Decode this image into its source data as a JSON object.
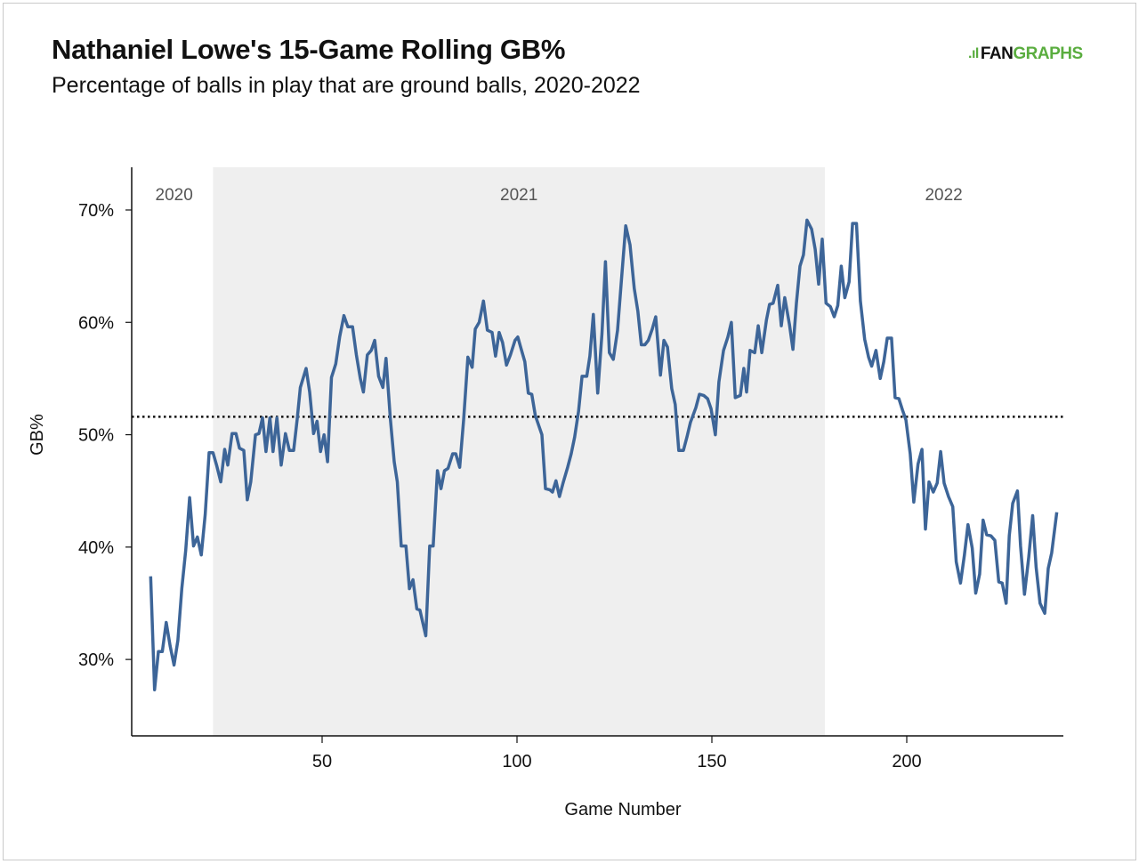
{
  "header": {
    "title": "Nathaniel Lowe's 15-Game Rolling GB%",
    "subtitle": "Percentage of balls in play that are ground balls, 2020-2022",
    "logo": {
      "mark": ".ıl",
      "text_dark": "FAN",
      "text_green": "GRAPHS"
    }
  },
  "colors": {
    "line": "#3d6598",
    "shade": "#efefef",
    "reference": "#111111",
    "logo_green": "#5aad3f"
  },
  "chart_data": {
    "type": "line",
    "title": "Nathaniel Lowe's 15-Game Rolling GB%",
    "subtitle": "Percentage of balls in play that are ground balls, 2020-2022",
    "xlabel": "Game Number",
    "ylabel": "GB%",
    "xlim": [
      0,
      240
    ],
    "ylim": [
      23.2,
      73.8
    ],
    "x_ticks": [
      50,
      100,
      150,
      200
    ],
    "x_tick_labels": [
      "50",
      "100",
      "150",
      "200"
    ],
    "y_ticks": [
      30,
      40,
      50,
      60,
      70
    ],
    "y_tick_labels": [
      "30%",
      "40%",
      "50%",
      "60%",
      "70%"
    ],
    "grid": false,
    "legend": "none",
    "reference_line": {
      "value": 51.6,
      "style": "dotted",
      "label": ""
    },
    "season_bands": [
      {
        "label": "2020",
        "start": 0,
        "end": 22,
        "shaded": false
      },
      {
        "label": "2021",
        "start": 22,
        "end": 179,
        "shaded": true
      },
      {
        "label": "2022",
        "start": 179,
        "end": 240,
        "shaded": false
      }
    ],
    "series": [
      {
        "name": "15-Game Rolling GB%",
        "x": [
          6,
          7,
          8,
          9,
          10,
          11,
          12,
          13,
          14,
          15,
          16,
          17,
          18,
          19,
          20,
          21,
          22,
          23,
          24,
          25,
          25.8,
          26.9,
          27.9,
          28.8,
          29.9,
          30.8,
          31.7,
          32.9,
          33.8,
          34.7,
          35.6,
          36.6,
          37.4,
          38.4,
          39.5,
          40.6,
          41.6,
          42.7,
          43.6,
          44.4,
          45.9,
          46.8,
          47.8,
          48.7,
          49.6,
          50.5,
          51.4,
          52.4,
          53.5,
          54.5,
          55.6,
          56.6,
          57.8,
          58.8,
          59.8,
          60.6,
          61.6,
          62.6,
          63.5,
          64.5,
          65.6,
          66.4,
          67.5,
          68.5,
          69.3,
          70.3,
          71.5,
          72.4,
          73.3,
          74.3,
          75.1,
          76.6,
          77.6,
          78.5,
          79.6,
          80.5,
          81.4,
          82.3,
          83.5,
          84.3,
          85.3,
          86.3,
          87.4,
          88.5,
          89.3,
          90.3,
          91.4,
          92.4,
          93.6,
          94.5,
          95.4,
          96.3,
          97.3,
          98.3,
          99.5,
          100.2,
          101.1,
          102.0,
          102.9,
          103.8,
          104.7,
          106.4,
          107.3,
          108.4,
          109.1,
          110.0,
          110.9,
          111.9,
          113.0,
          113.9,
          114.8,
          115.8,
          116.7,
          117.9,
          118.7,
          119.6,
          120.7,
          121.8,
          122.7,
          123.7,
          124.7,
          125.8,
          126.8,
          127.9,
          129.0,
          130.1,
          131.0,
          131.9,
          132.8,
          133.7,
          134.7,
          135.6,
          136.8,
          137.7,
          138.6,
          139.7,
          140.6,
          141.5,
          142.7,
          143.6,
          144.5,
          145.9,
          146.8,
          147.9,
          148.9,
          149.8,
          150.9,
          151.8,
          153.0,
          154.1,
          155.0,
          156.0,
          157.3,
          158.2,
          158.9,
          159.8,
          161.0,
          161.9,
          162.8,
          164.0,
          164.8,
          165.7,
          166.9,
          167.8,
          168.7,
          169.9,
          170.8,
          171.7,
          172.6,
          173.5,
          174.4,
          175.6,
          176.5,
          177.4,
          178.3,
          179.3,
          180.4,
          181.4,
          182.3,
          183.2,
          184.1,
          185.2,
          186.1,
          187.1,
          188.1,
          189.2,
          190.2,
          191.0,
          192.1,
          193.2,
          194.1,
          195.0,
          196.1,
          197.0,
          198.0,
          198.9,
          199.8,
          200.9,
          201.8,
          202.9,
          203.9,
          204.8,
          205.7,
          206.8,
          207.8,
          208.7,
          209.6,
          210.7,
          211.8,
          212.7,
          213.8,
          214.8,
          215.7,
          216.8,
          217.7,
          218.7,
          219.6,
          220.5,
          221.6,
          222.6,
          223.6,
          224.5,
          225.5,
          226.3,
          227.2,
          228.4,
          229.2,
          230.2,
          231.3,
          232.3,
          233.2,
          234.2,
          235.4,
          236.3,
          237.2,
          238.5
        ],
        "values": [
          37.4,
          27.3,
          30.7,
          30.7,
          33.3,
          31.2,
          29.5,
          31.7,
          36.3,
          39.7,
          44.4,
          40.1,
          40.9,
          39.3,
          42.9,
          48.4,
          48.4,
          47.2,
          45.8,
          48.7,
          47.3,
          50.1,
          50.1,
          48.8,
          48.6,
          44.2,
          45.8,
          50.0,
          50.1,
          51.5,
          48.5,
          51.5,
          48.5,
          51.5,
          47.3,
          50.1,
          48.6,
          48.6,
          51.4,
          54.2,
          55.9,
          53.8,
          50.1,
          51.2,
          48.5,
          50.0,
          47.6,
          55.1,
          56.3,
          58.7,
          60.6,
          59.6,
          59.6,
          57.1,
          55.0,
          53.8,
          57.1,
          57.5,
          58.4,
          55.2,
          54.2,
          56.8,
          51.5,
          47.6,
          45.8,
          40.1,
          40.1,
          36.3,
          37.1,
          34.5,
          34.4,
          32.1,
          40.1,
          40.1,
          46.8,
          45.2,
          46.8,
          47.0,
          48.3,
          48.3,
          47.1,
          51.3,
          56.9,
          56.0,
          59.4,
          60.0,
          61.9,
          59.3,
          59.1,
          57.0,
          59.1,
          58.2,
          56.2,
          57.1,
          58.4,
          58.7,
          57.6,
          56.5,
          53.7,
          53.6,
          51.7,
          50.0,
          45.2,
          45.1,
          44.9,
          45.9,
          44.5,
          45.8,
          47.1,
          48.3,
          49.8,
          52.1,
          55.2,
          55.2,
          57.0,
          60.7,
          53.7,
          59.0,
          65.4,
          57.3,
          56.7,
          59.3,
          63.8,
          68.6,
          66.9,
          63.0,
          61.0,
          58.0,
          58.0,
          58.4,
          59.4,
          60.5,
          55.3,
          58.4,
          57.8,
          54.1,
          52.7,
          48.6,
          48.6,
          49.8,
          51.1,
          52.4,
          53.6,
          53.5,
          53.2,
          52.3,
          50.0,
          54.7,
          57.5,
          58.7,
          60.0,
          53.3,
          53.5,
          55.9,
          53.8,
          57.5,
          57.3,
          59.7,
          57.3,
          60.2,
          61.6,
          61.7,
          63.3,
          59.7,
          62.2,
          59.8,
          57.6,
          61.7,
          65.0,
          66.0,
          69.1,
          68.3,
          66.5,
          63.4,
          67.4,
          61.7,
          61.4,
          60.5,
          61.5,
          65.0,
          62.2,
          63.6,
          68.8,
          68.8,
          61.9,
          58.5,
          56.9,
          56.1,
          57.5,
          55.0,
          56.5,
          58.6,
          58.6,
          53.3,
          53.2,
          52.2,
          51.3,
          48.3,
          44.0,
          47.4,
          48.7,
          41.6,
          45.8,
          44.9,
          45.7,
          48.5,
          45.7,
          44.5,
          43.6,
          38.7,
          36.8,
          39.3,
          42.0,
          39.9,
          35.9,
          37.6,
          42.4,
          41.1,
          41.0,
          40.6,
          36.9,
          36.8,
          35.0,
          41.0,
          43.9,
          45.0,
          40.1,
          35.8,
          39.1,
          42.8,
          38.2,
          35.0,
          34.1,
          38.1,
          39.5,
          43.1
        ]
      }
    ]
  }
}
